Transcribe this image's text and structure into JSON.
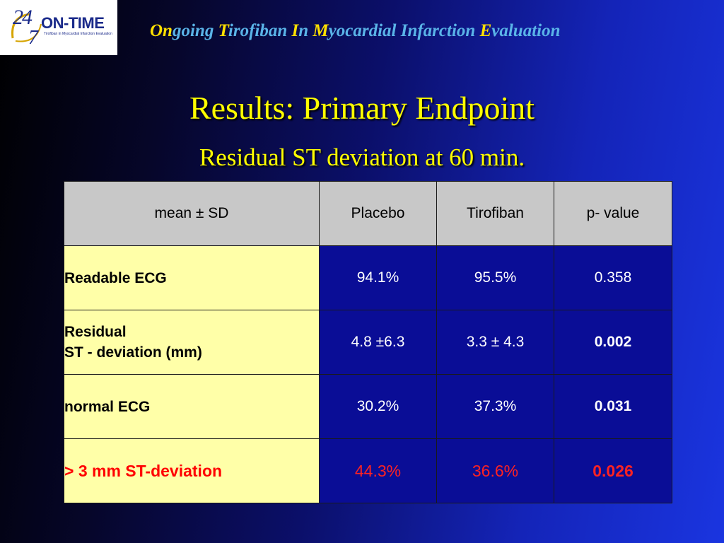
{
  "logo": {
    "num1": "24",
    "num2": "7",
    "name": "ON-TIME",
    "tagline": "Tirofiban in Myocardial Infarction Evaluation"
  },
  "acronym": {
    "parts": [
      {
        "hl": "On",
        "rest": "going "
      },
      {
        "hl": "T",
        "rest": "irofiban "
      },
      {
        "hl": "I",
        "rest": "n "
      },
      {
        "hl": "M",
        "rest": "yocardial Infarction "
      },
      {
        "hl": "E",
        "rest": "valuation"
      }
    ]
  },
  "title": "Results: Primary Endpoint",
  "subtitle": "Residual ST deviation at 60 min.",
  "table": {
    "headers": [
      "mean ± SD",
      "Placebo",
      "Tirofiban",
      "p- value"
    ],
    "rows": [
      {
        "label1": "Readable ECG",
        "label2": "",
        "placebo": "94.1%",
        "tirofiban": "95.5%",
        "p": "0.358"
      },
      {
        "label1": "Residual",
        "label2": "ST - deviation (mm)",
        "placebo": "4.8  ±6.3",
        "tirofiban": "3.3  ± 4.3",
        "p": "0.002"
      },
      {
        "label1": "normal ECG",
        "label2": "",
        "placebo": "30.2%",
        "tirofiban": "37.3%",
        "p": "0.031"
      },
      {
        "label1": "> 3 mm ST-deviation",
        "label2": "",
        "placebo": "44.3%",
        "tirofiban": "36.6%",
        "p": "0.026"
      }
    ]
  },
  "colors": {
    "title": "#ffff00",
    "highlight": "#ff0000",
    "table_body": "#0a0d96",
    "label_bg": "#ffffa8",
    "header_bg": "#c8c8c8"
  }
}
